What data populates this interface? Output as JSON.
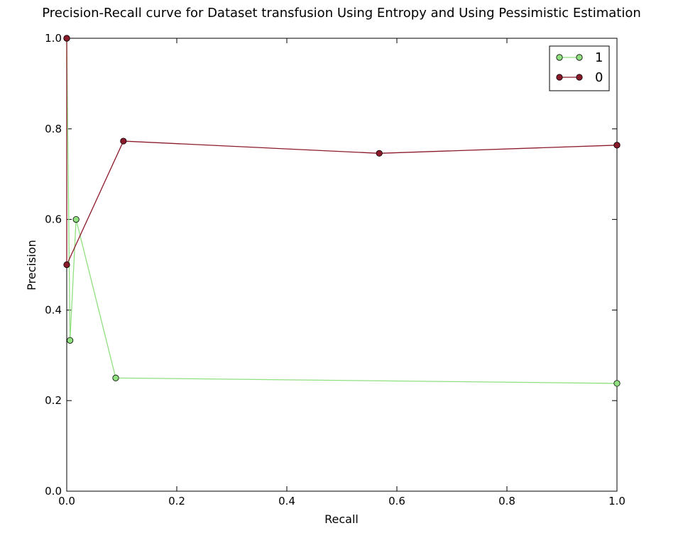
{
  "chart_data": {
    "type": "line",
    "title": "Precision-Recall curve for Dataset transfusion Using Entropy and Using Pessimistic Estimation",
    "xlabel": "Recall",
    "ylabel": "Precision",
    "xlim": [
      0.0,
      1.0
    ],
    "ylim": [
      0.0,
      1.0
    ],
    "x_ticks": [
      "0.0",
      "0.2",
      "0.4",
      "0.6",
      "0.8",
      "1.0"
    ],
    "y_ticks": [
      "0.0",
      "0.2",
      "0.4",
      "0.6",
      "0.8",
      "1.0"
    ],
    "grid": false,
    "legend_position": "top-right",
    "series": [
      {
        "name": "1",
        "color": "#90e080",
        "marker": "circle",
        "points": [
          {
            "x": 0.0,
            "y": 1.0
          },
          {
            "x": 0.006,
            "y": 0.333
          },
          {
            "x": 0.017,
            "y": 0.6
          },
          {
            "x": 0.089,
            "y": 0.25
          },
          {
            "x": 1.0,
            "y": 0.238
          }
        ]
      },
      {
        "name": "0",
        "color": "#8b1a2b",
        "marker": "circle",
        "points": [
          {
            "x": 0.0,
            "y": 1.0
          },
          {
            "x": 0.0,
            "y": 0.5
          },
          {
            "x": 0.103,
            "y": 0.773
          },
          {
            "x": 0.568,
            "y": 0.746
          },
          {
            "x": 1.0,
            "y": 0.764
          },
          {
            "x": 1.0,
            "y": 0.764
          }
        ]
      }
    ]
  }
}
